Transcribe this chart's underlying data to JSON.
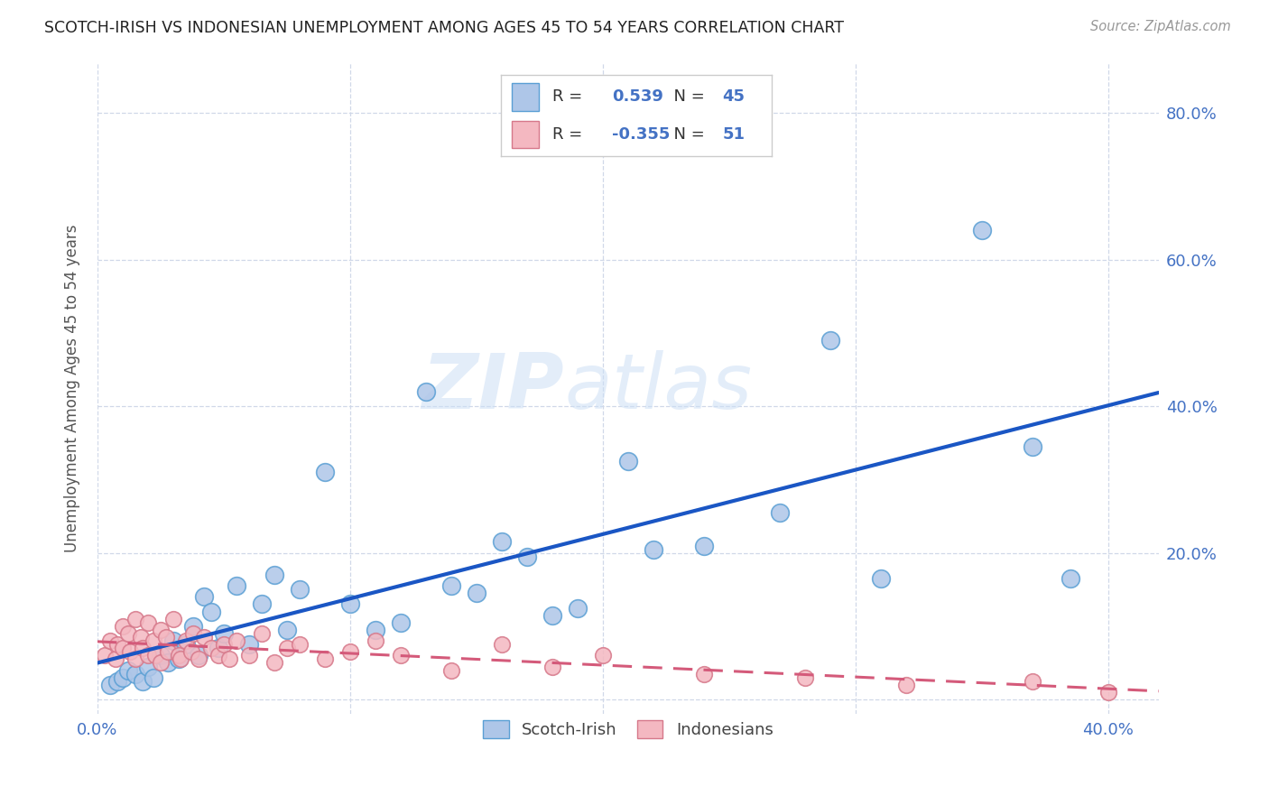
{
  "title": "SCOTCH-IRISH VS INDONESIAN UNEMPLOYMENT AMONG AGES 45 TO 54 YEARS CORRELATION CHART",
  "source": "Source: ZipAtlas.com",
  "ylabel": "Unemployment Among Ages 45 to 54 years",
  "xlim": [
    0.0,
    0.42
  ],
  "ylim": [
    -0.02,
    0.87
  ],
  "xticks": [
    0.0,
    0.1,
    0.2,
    0.3,
    0.4
  ],
  "yticks": [
    0.0,
    0.2,
    0.4,
    0.6,
    0.8
  ],
  "right_ytick_labels": [
    "",
    "20.0%",
    "40.0%",
    "60.0%",
    "80.0%"
  ],
  "xtick_labels": [
    "0.0%",
    "",
    "",
    "",
    "40.0%"
  ],
  "background_color": "#ffffff",
  "grid_color": "#d0d8e8",
  "scotch_irish_color": "#aec6e8",
  "scotch_irish_edge": "#5a9fd4",
  "indonesian_color": "#f4b8c1",
  "indonesian_edge": "#d6788a",
  "scotch_irish_R": 0.539,
  "scotch_irish_N": 45,
  "indonesian_R": -0.355,
  "indonesian_N": 51,
  "line_blue": "#1a56c4",
  "line_pink": "#d45a7a",
  "scotch_irish_x": [
    0.005,
    0.008,
    0.01,
    0.012,
    0.015,
    0.018,
    0.02,
    0.022,
    0.025,
    0.028,
    0.03,
    0.032,
    0.035,
    0.038,
    0.04,
    0.042,
    0.045,
    0.048,
    0.05,
    0.055,
    0.06,
    0.065,
    0.07,
    0.075,
    0.08,
    0.09,
    0.1,
    0.11,
    0.12,
    0.13,
    0.14,
    0.15,
    0.16,
    0.17,
    0.18,
    0.19,
    0.21,
    0.22,
    0.24,
    0.27,
    0.29,
    0.31,
    0.35,
    0.37,
    0.385
  ],
  "scotch_irish_y": [
    0.02,
    0.025,
    0.03,
    0.04,
    0.035,
    0.025,
    0.045,
    0.03,
    0.06,
    0.05,
    0.08,
    0.055,
    0.075,
    0.1,
    0.06,
    0.14,
    0.12,
    0.07,
    0.09,
    0.155,
    0.075,
    0.13,
    0.17,
    0.095,
    0.15,
    0.31,
    0.13,
    0.095,
    0.105,
    0.42,
    0.155,
    0.145,
    0.215,
    0.195,
    0.115,
    0.125,
    0.325,
    0.205,
    0.21,
    0.255,
    0.49,
    0.165,
    0.64,
    0.345,
    0.165
  ],
  "indonesian_x": [
    0.003,
    0.005,
    0.007,
    0.008,
    0.01,
    0.01,
    0.012,
    0.013,
    0.015,
    0.015,
    0.017,
    0.018,
    0.02,
    0.02,
    0.022,
    0.023,
    0.025,
    0.025,
    0.027,
    0.028,
    0.03,
    0.032,
    0.033,
    0.035,
    0.037,
    0.038,
    0.04,
    0.042,
    0.045,
    0.048,
    0.05,
    0.052,
    0.055,
    0.06,
    0.065,
    0.07,
    0.075,
    0.08,
    0.09,
    0.1,
    0.11,
    0.12,
    0.14,
    0.16,
    0.18,
    0.2,
    0.24,
    0.28,
    0.32,
    0.37,
    0.4
  ],
  "indonesian_y": [
    0.06,
    0.08,
    0.055,
    0.075,
    0.07,
    0.1,
    0.09,
    0.065,
    0.11,
    0.055,
    0.085,
    0.07,
    0.06,
    0.105,
    0.08,
    0.06,
    0.095,
    0.05,
    0.085,
    0.065,
    0.11,
    0.06,
    0.055,
    0.08,
    0.065,
    0.09,
    0.055,
    0.085,
    0.07,
    0.06,
    0.075,
    0.055,
    0.08,
    0.06,
    0.09,
    0.05,
    0.07,
    0.075,
    0.055,
    0.065,
    0.08,
    0.06,
    0.04,
    0.075,
    0.045,
    0.06,
    0.035,
    0.03,
    0.02,
    0.025,
    0.01
  ],
  "watermark_zip": "ZIP",
  "watermark_atlas": "atlas"
}
